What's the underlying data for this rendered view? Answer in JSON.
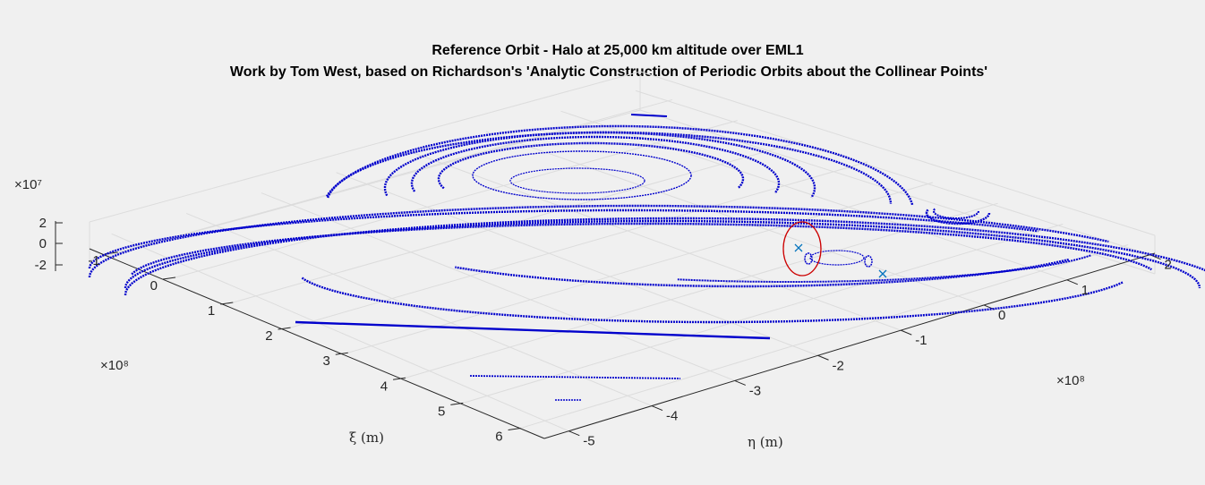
{
  "chart_data": {
    "type": "scatter",
    "title": "Reference Orbit - Halo at 25,000 km altitude over EML1",
    "subtitle": "Work by Tom West, based on Richardson's 'Analytic Construction of Periodic Orbits about the Collinear Points'",
    "xlabel": "ξ (m)",
    "ylabel": "η (m)",
    "x_exponent": "×10⁸",
    "y_exponent": "×10⁸",
    "z_exponent": "×10⁷",
    "x_ticks": [
      "-1",
      "0",
      "1",
      "2",
      "3",
      "4",
      "5",
      "6"
    ],
    "y_ticks": [
      "-5",
      "-4",
      "-3",
      "-2",
      "-1",
      "0",
      "1",
      "2"
    ],
    "z_ticks": [
      "-2",
      "0",
      "2"
    ],
    "xlim": [
      -150000000.0,
      600000000.0
    ],
    "ylim": [
      -550000000.0,
      250000000.0
    ],
    "zlim": [
      -30000000.0,
      30000000.0
    ],
    "grid": true,
    "series": [
      {
        "color": "#0000cc",
        "marker": "dot",
        "description": "trajectory points"
      },
      {
        "color": "#0072bd",
        "marker": "x",
        "points": [
          {
            "x": 310000000.0,
            "y": -30000000.0,
            "z": 0
          },
          {
            "x": 420000000.0,
            "y": 0.0,
            "z": 0
          }
        ]
      }
    ],
    "annotation": {
      "type": "ellipse",
      "color": "#cc0000"
    }
  }
}
